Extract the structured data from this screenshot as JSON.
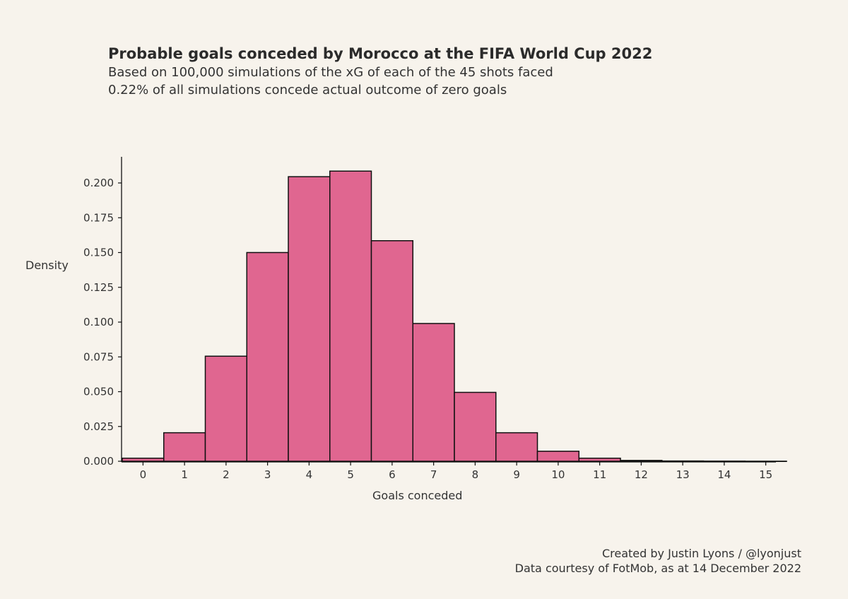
{
  "chart_data": {
    "type": "bar",
    "title": "Probable goals conceded by Morocco at the FIFA World Cup 2022",
    "subtitle": [
      "Based on 100,000 simulations of the xG of each of the 45 shots faced",
      "0.22% of all simulations concede actual outcome of zero goals"
    ],
    "xlabel": "Goals conceded",
    "ylabel": "Density",
    "categories": [
      "0",
      "1",
      "2",
      "3",
      "4",
      "5",
      "6",
      "7",
      "8",
      "9",
      "10",
      "11",
      "12",
      "13",
      "14",
      "15"
    ],
    "values": [
      0.0022,
      0.0205,
      0.0755,
      0.15,
      0.2045,
      0.2085,
      0.1585,
      0.099,
      0.0495,
      0.0205,
      0.0072,
      0.0022,
      0.0006,
      0.0002,
      0.0001,
      3e-05
    ],
    "yticks": [
      "0.000",
      "0.025",
      "0.050",
      "0.075",
      "0.100",
      "0.125",
      "0.150",
      "0.175",
      "0.200"
    ],
    "ylim": [
      0,
      0.22
    ],
    "bar_color": "#e06690",
    "bar_edge_color": "#111111",
    "background": "#f7f3ec",
    "grid": false
  },
  "credits": {
    "line1": "Created by Justin Lyons / @lyonjust",
    "line2": "Data courtesy of FotMob, as at 14 December 2022"
  }
}
